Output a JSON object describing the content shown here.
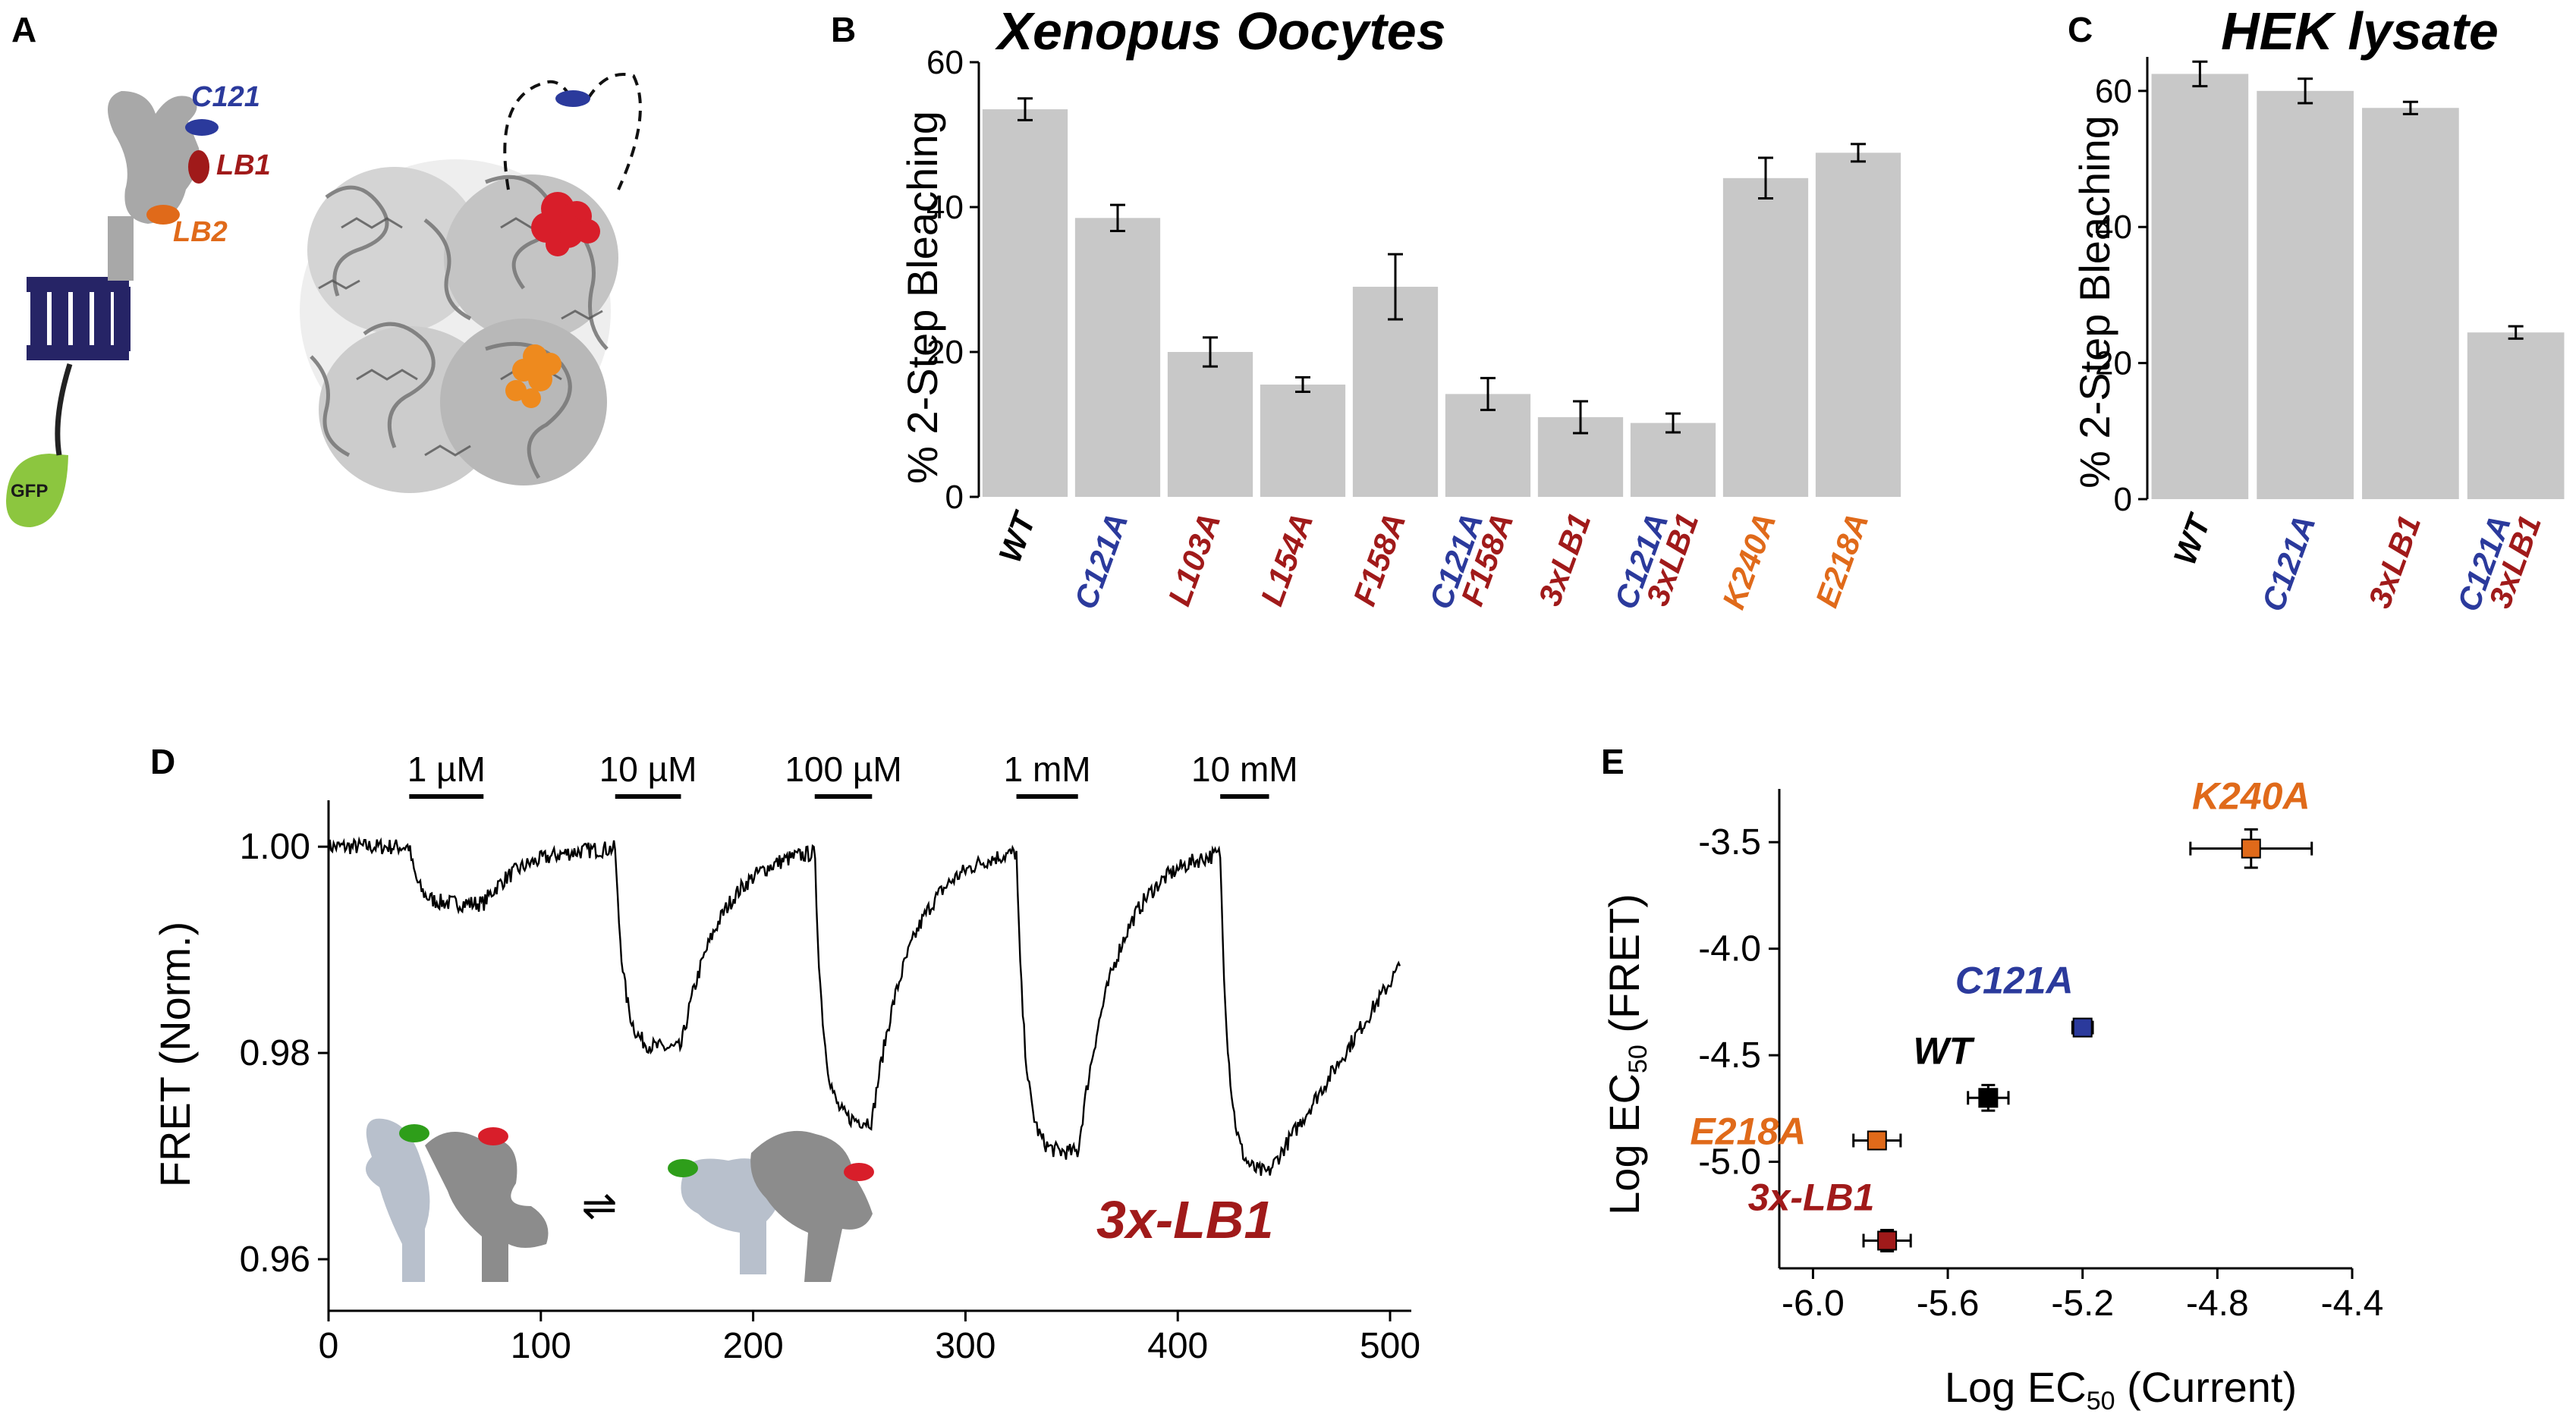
{
  "panel_labels": {
    "a": "A",
    "b": "B",
    "c": "C",
    "d": "D",
    "e": "E"
  },
  "colors": {
    "bar": "#c8c8c8",
    "blue": "#2b3a9c",
    "red": "#a01a1a",
    "orange": "#e06a1a",
    "black": "#000000",
    "gfp": "#8cc63f",
    "membrane": "#262466",
    "protein": "#a8a8a8"
  },
  "schematic": {
    "c121": "C121",
    "lb1": "LB1",
    "lb2": "LB2",
    "gfp": "GFP"
  },
  "chart_data": [
    {
      "panel": "B",
      "type": "bar",
      "title": "Xenopus Oocytes",
      "ylabel": "% 2-Step Bleaching",
      "ylim": [
        0,
        60
      ],
      "yticks": [
        0,
        20,
        40,
        60
      ],
      "categories": [
        {
          "lines": [
            "WT"
          ],
          "colors": [
            "black"
          ]
        },
        {
          "lines": [
            "C121A"
          ],
          "colors": [
            "blue"
          ]
        },
        {
          "lines": [
            "L103A"
          ],
          "colors": [
            "red"
          ]
        },
        {
          "lines": [
            "L154A"
          ],
          "colors": [
            "red"
          ]
        },
        {
          "lines": [
            "F158A"
          ],
          "colors": [
            "red"
          ]
        },
        {
          "lines": [
            "C121A",
            "F158A"
          ],
          "colors": [
            "blue",
            "red"
          ]
        },
        {
          "lines": [
            "3xLB1"
          ],
          "colors": [
            "red"
          ]
        },
        {
          "lines": [
            "C121A",
            "3xLB1"
          ],
          "colors": [
            "blue",
            "red"
          ]
        },
        {
          "lines": [
            "K240A"
          ],
          "colors": [
            "orange"
          ]
        },
        {
          "lines": [
            "E218A"
          ],
          "colors": [
            "orange"
          ]
        }
      ],
      "values": [
        53.5,
        38.5,
        20,
        15.5,
        29,
        14.2,
        11,
        10.2,
        44,
        47.5
      ],
      "errors": [
        1.5,
        1.8,
        2,
        1,
        4.5,
        2.2,
        2.2,
        1.3,
        2.8,
        1.2
      ]
    },
    {
      "panel": "C",
      "type": "bar",
      "title": "HEK lysate",
      "ylabel": "% 2-Step Bleaching",
      "ylim": [
        0,
        65
      ],
      "yticks": [
        0,
        20,
        40,
        60
      ],
      "categories": [
        {
          "lines": [
            "WT"
          ],
          "colors": [
            "black"
          ]
        },
        {
          "lines": [
            "C121A"
          ],
          "colors": [
            "blue"
          ]
        },
        {
          "lines": [
            "3xLB1"
          ],
          "colors": [
            "red"
          ]
        },
        {
          "lines": [
            "C121A",
            "3xLB1"
          ],
          "colors": [
            "blue",
            "red"
          ]
        }
      ],
      "values": [
        62.5,
        60,
        57.5,
        24.5
      ],
      "errors": [
        1.8,
        1.8,
        0.9,
        0.9
      ]
    },
    {
      "panel": "D",
      "type": "line",
      "ylabel": "FRET (Norm.)",
      "xlim": [
        0,
        510
      ],
      "ylim": [
        0.955,
        1.0045
      ],
      "xticks": [
        0,
        100,
        200,
        300,
        400,
        500
      ],
      "yticks": [
        {
          "v": 0.96,
          "label": "0.96"
        },
        {
          "v": 0.98,
          "label": "0.98"
        },
        {
          "v": 1.0,
          "label": "1.00"
        }
      ],
      "applications": [
        {
          "label": "1 µM",
          "start": 38,
          "end": 73,
          "drop": 0.0055
        },
        {
          "label": "10 µM",
          "start": 135,
          "end": 166,
          "drop": 0.0195
        },
        {
          "label": "100 µM",
          "start": 229,
          "end": 256,
          "drop": 0.0265
        },
        {
          "label": "1 mM",
          "start": 324,
          "end": 353,
          "drop": 0.0295
        },
        {
          "label": "10 mM",
          "start": 420,
          "end": 443,
          "drop": 0.0315
        }
      ],
      "trace_end": 505,
      "trace_end_value": 0.9885,
      "annotation": "3x-LB1",
      "scheme_symbol": "⇌"
    },
    {
      "panel": "E",
      "type": "scatter",
      "xlabel_main": "Log EC",
      "xlabel_sub": "50",
      "xlabel_tail": " (Current)",
      "ylabel_main": "Log EC",
      "ylabel_sub": "50",
      "ylabel_tail": " (FRET)",
      "xlim": [
        -6.1,
        -4.4
      ],
      "ylim": [
        -5.5,
        -3.25
      ],
      "xticks": [
        {
          "v": -6.0,
          "label": "-6.0"
        },
        {
          "v": -5.6,
          "label": "-5.6"
        },
        {
          "v": -5.2,
          "label": "-5.2"
        },
        {
          "v": -4.8,
          "label": "-4.8"
        },
        {
          "v": -4.4,
          "label": "-4.4"
        }
      ],
      "yticks": [
        {
          "v": -3.5,
          "label": "-3.5"
        },
        {
          "v": -4.0,
          "label": "-4.0"
        },
        {
          "v": -4.5,
          "label": "-4.5"
        },
        {
          "v": -5.0,
          "label": "-5.0"
        }
      ],
      "points": [
        {
          "label": "K240A",
          "x": -4.7,
          "y": -3.53,
          "xerr": 0.18,
          "yerr": 0.09,
          "color": "orange"
        },
        {
          "label": "C121A",
          "x": -5.2,
          "y": -4.37,
          "xerr": 0.03,
          "yerr": 0.03,
          "color": "blue"
        },
        {
          "label": "WT",
          "x": -5.48,
          "y": -4.7,
          "xerr": 0.06,
          "yerr": 0.06,
          "color": "black"
        },
        {
          "label": "E218A",
          "x": -5.81,
          "y": -4.9,
          "xerr": 0.07,
          "yerr": 0.025,
          "color": "orange"
        },
        {
          "label": "3x-LB1",
          "x": -5.78,
          "y": -5.37,
          "xerr": 0.07,
          "yerr": 0.05,
          "color": "red"
        }
      ]
    }
  ]
}
